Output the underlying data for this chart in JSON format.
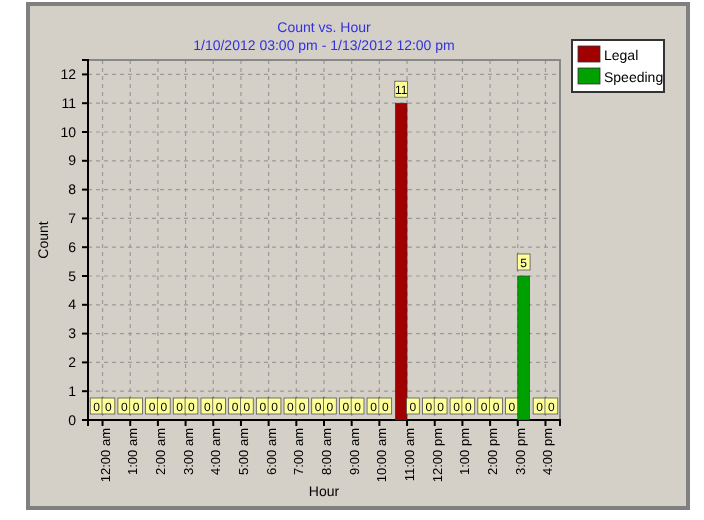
{
  "chart_data": {
    "type": "bar",
    "title": "Count vs. Hour",
    "subtitle": "1/10/2012 03:00 pm - 1/13/2012 12:00 pm",
    "xlabel": "Hour",
    "ylabel": "Count",
    "categories": [
      "12:00 am",
      "1:00 am",
      "2:00 am",
      "3:00 am",
      "4:00 am",
      "5:00 am",
      "6:00 am",
      "7:00 am",
      "8:00 am",
      "9:00 am",
      "10:00 am",
      "11:00 am",
      "12:00 pm",
      "1:00 pm",
      "2:00 pm",
      "3:00 pm",
      "4:00 pm"
    ],
    "series": [
      {
        "name": "Legal",
        "color": "#a00000",
        "values": [
          0,
          0,
          0,
          0,
          0,
          0,
          0,
          0,
          0,
          0,
          0,
          11,
          0,
          0,
          0,
          0,
          0
        ]
      },
      {
        "name": "Speeding",
        "color": "#00a000",
        "values": [
          0,
          0,
          0,
          0,
          0,
          0,
          0,
          0,
          0,
          0,
          0,
          0,
          0,
          0,
          0,
          5,
          0
        ]
      }
    ],
    "ylim": [
      0,
      12.5
    ],
    "yticks": [
      0,
      1,
      2,
      3,
      4,
      5,
      6,
      7,
      8,
      9,
      10,
      11,
      12
    ],
    "grid": true,
    "legend": "top right",
    "data_labels": true
  }
}
